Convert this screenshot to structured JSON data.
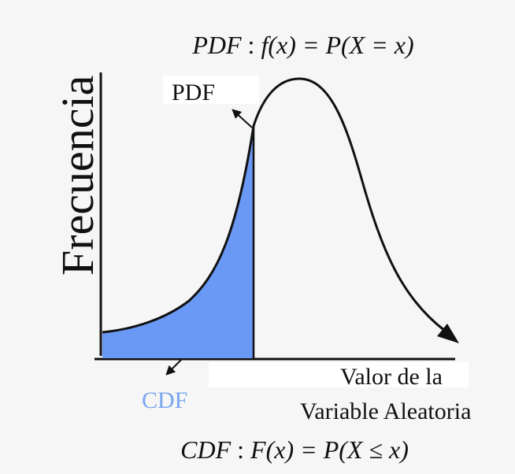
{
  "top_formula": {
    "prefix": "PDF",
    "sep": ":",
    "expr": "f(x) = P(X = x)"
  },
  "bottom_formula": {
    "prefix": "CDF",
    "sep": ":",
    "expr": "F(x) = P(X ≤ x)"
  },
  "y_axis_label": "Frecuencia",
  "x_axis_label": {
    "line1": "Valor de la",
    "line2": "Variable Aleatoria"
  },
  "pdf_label": "PDF",
  "cdf_label": "CDF",
  "colors": {
    "cdf_fill": "#6a99f5",
    "cdf_label": "#7aa5f0",
    "curve": "#111111",
    "axis": "#111111"
  }
}
